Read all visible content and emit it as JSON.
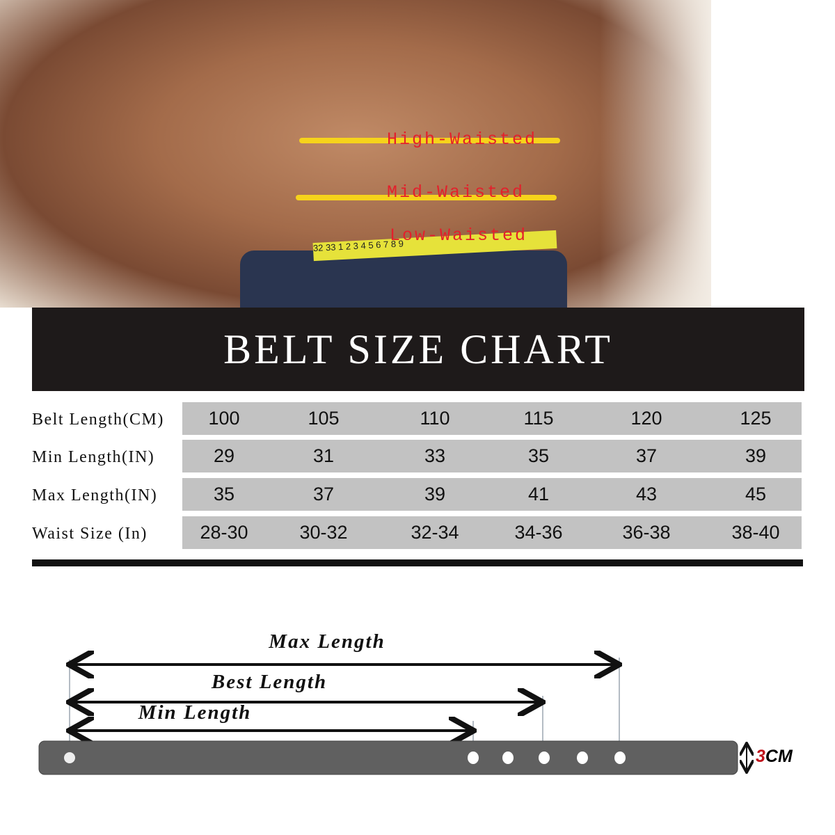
{
  "photo": {
    "waist_labels": [
      "High-Waisted",
      "Mid-Waisted",
      "Low-Waisted"
    ],
    "tape_numbers": "32 33   1   2   3   4   5   6   7   8   9",
    "line_color": "#f6d31b",
    "label_color": "#e3202b"
  },
  "title": "BELT SIZE CHART",
  "table": {
    "rows": [
      {
        "label": "Belt Length(CM)",
        "values": [
          "100",
          "105",
          "110",
          "115",
          "120",
          "125"
        ]
      },
      {
        "label": "Min Length(IN)",
        "values": [
          "29",
          "31",
          "33",
          "35",
          "37",
          "39"
        ]
      },
      {
        "label": "Max Length(IN)",
        "values": [
          "35",
          "37",
          "39",
          "41",
          "43",
          "45"
        ]
      },
      {
        "label": "Waist Size (In)",
        "values": [
          "28-30",
          "30-32",
          "32-34",
          "34-36",
          "36-38",
          "38-40"
        ]
      }
    ]
  },
  "diagram": {
    "max_label": "Max Length",
    "best_label": "Best Length",
    "min_label": "Min Length",
    "width_label_digit": "3",
    "width_label_unit": "CM",
    "belt_color": "#606060",
    "hole_count": 5
  }
}
